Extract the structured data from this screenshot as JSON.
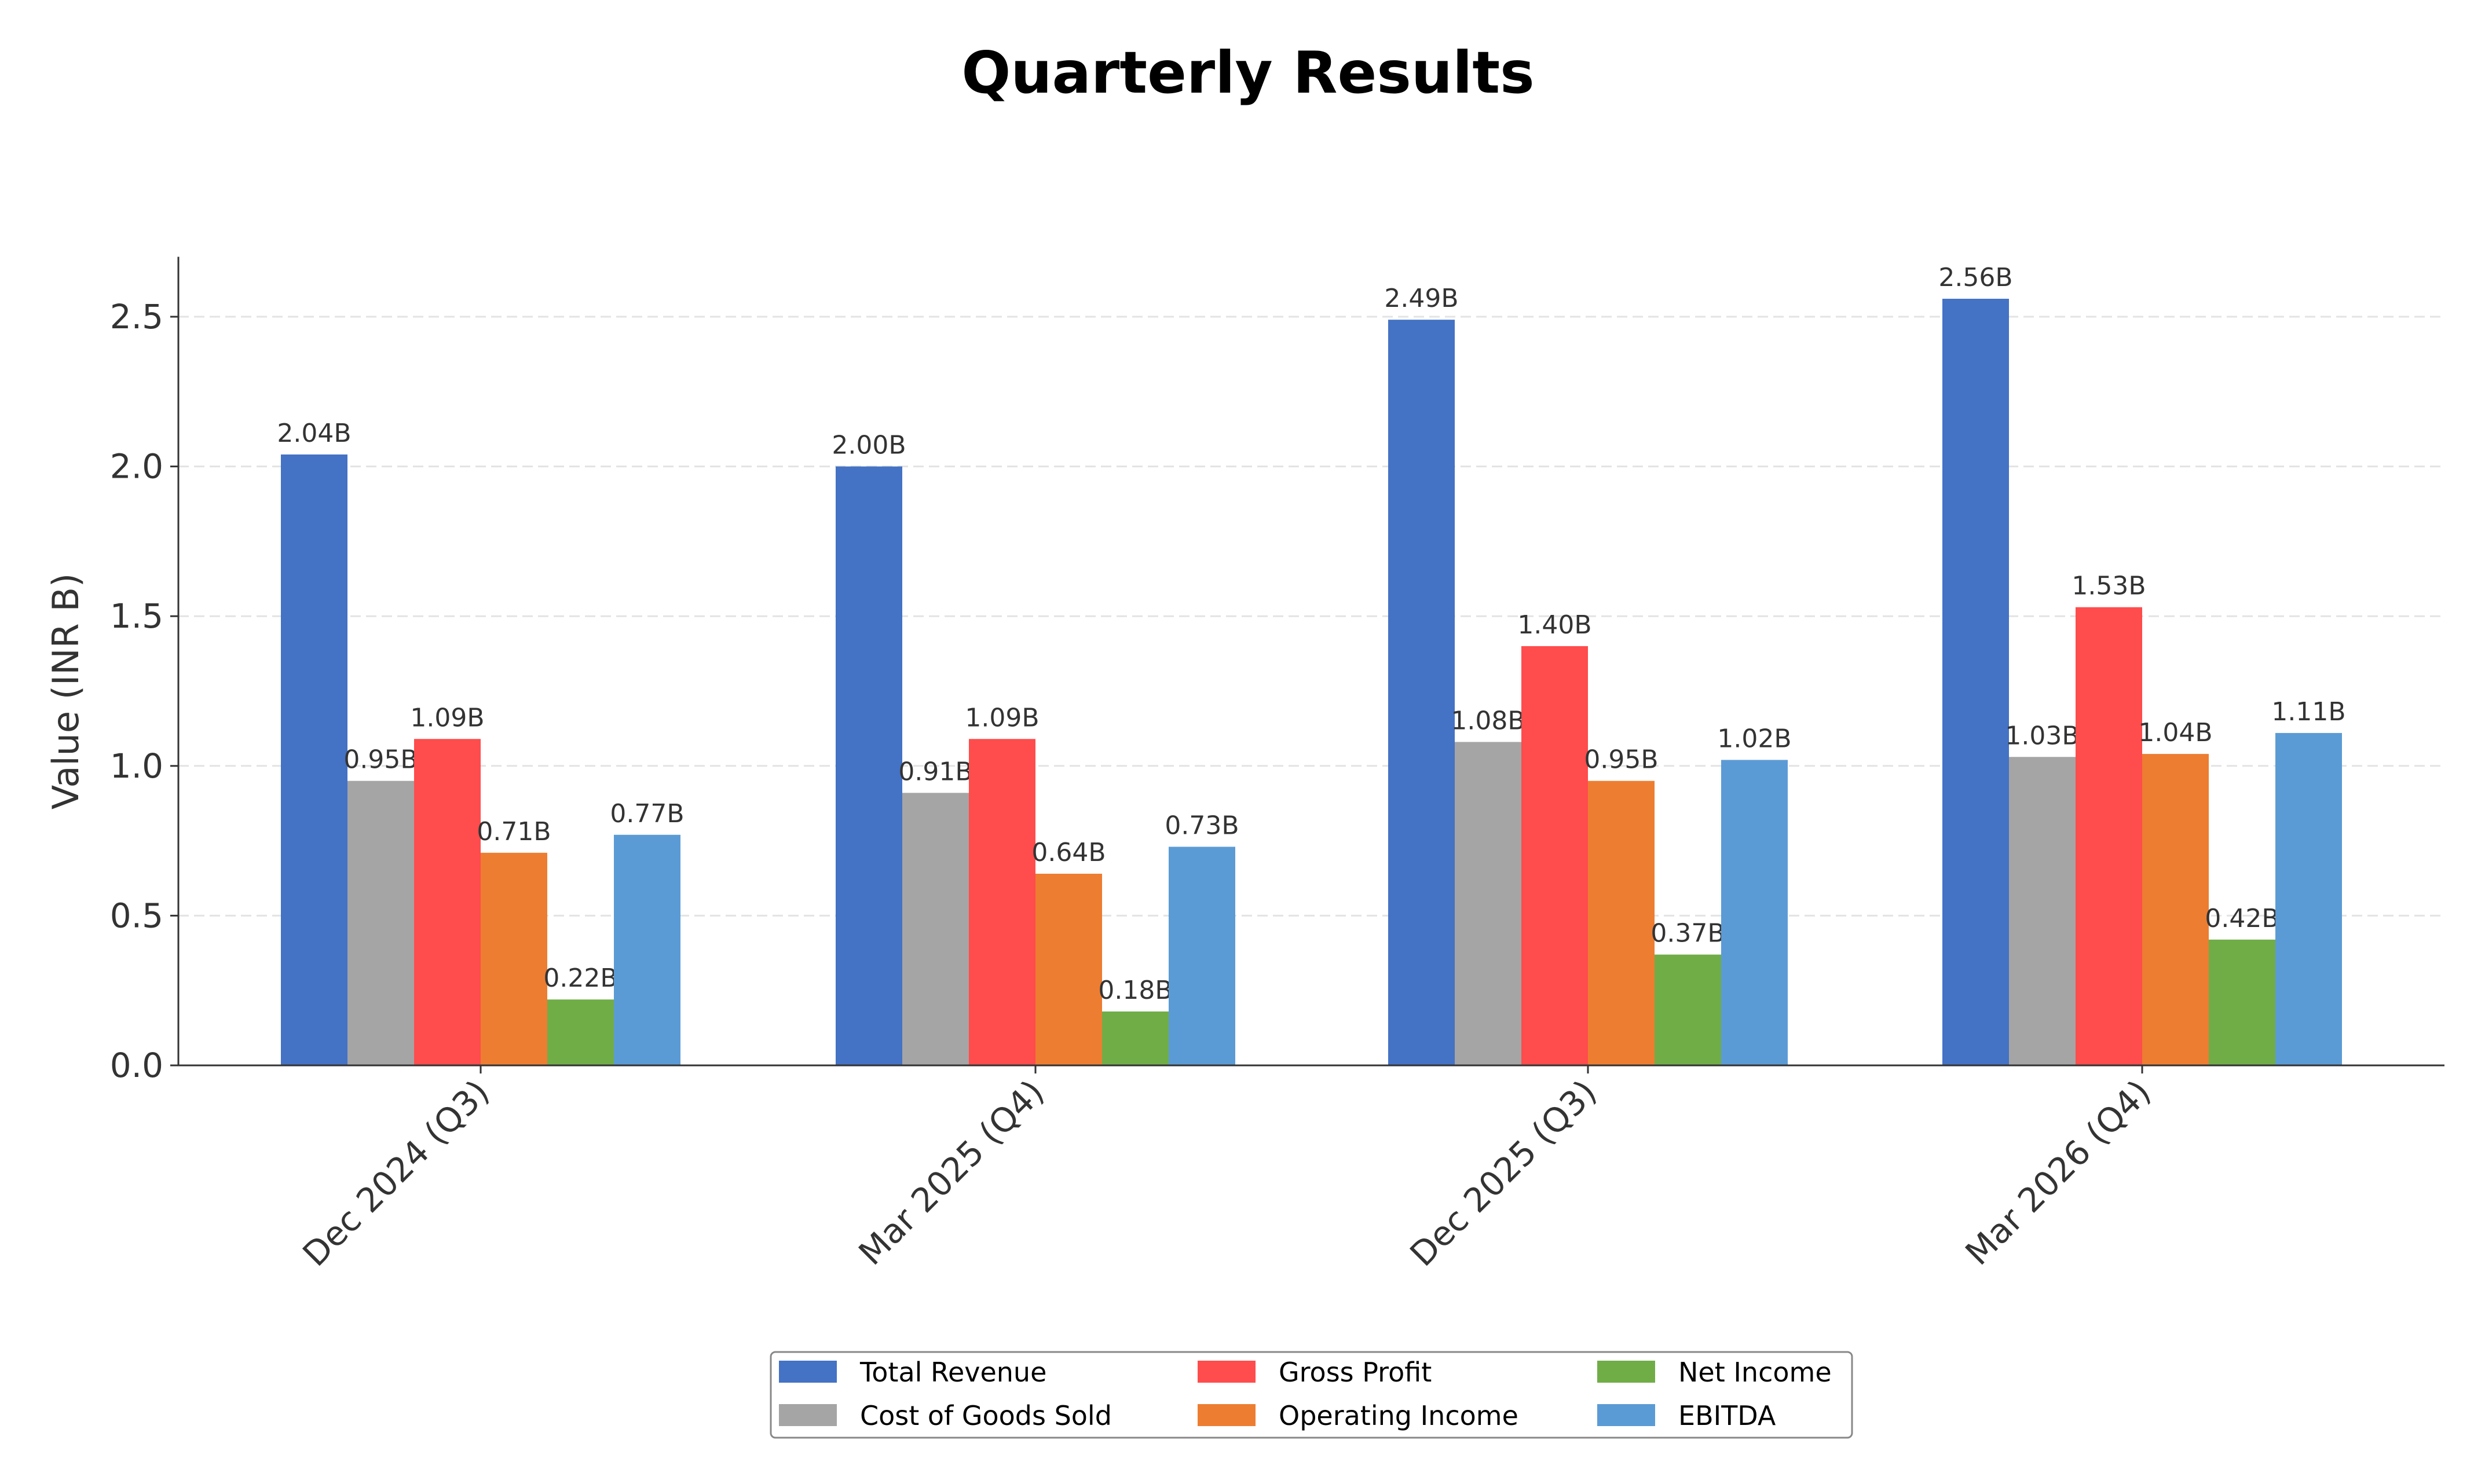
{
  "chart_data": {
    "type": "bar",
    "title": "Quarterly Results",
    "xlabel": "",
    "ylabel": "Value (INR B)",
    "ylim": [
      0,
      2.7
    ],
    "yticks": [
      "0.0",
      "0.5",
      "1.0",
      "1.5",
      "2.0",
      "2.5"
    ],
    "grid": "horizontal dashed",
    "legend_placement": "bottom-center",
    "categories": [
      "Dec 2024 (Q3)",
      "Mar 2025 (Q4)",
      "Dec 2025 (Q3)",
      "Mar 2026 (Q4)"
    ],
    "series": [
      {
        "name": "Total Revenue",
        "color": "#4472C4",
        "values": [
          2.04,
          2.0,
          2.49,
          2.56
        ],
        "labels": [
          "2.04B",
          "2.00B",
          "2.49B",
          "2.56B"
        ]
      },
      {
        "name": "Cost of Goods Sold",
        "color": "#A5A5A5",
        "values": [
          0.95,
          0.91,
          1.08,
          1.03
        ],
        "labels": [
          "0.95B",
          "0.91B",
          "1.08B",
          "1.03B"
        ]
      },
      {
        "name": "Gross Profit",
        "color": "#FF4C4C",
        "values": [
          1.09,
          1.09,
          1.4,
          1.53
        ],
        "labels": [
          "1.09B",
          "1.09B",
          "1.40B",
          "1.53B"
        ]
      },
      {
        "name": "Operating Income",
        "color": "#ED7D31",
        "values": [
          0.71,
          0.64,
          0.95,
          1.04
        ],
        "labels": [
          "0.71B",
          "0.64B",
          "0.95B",
          "1.04B"
        ]
      },
      {
        "name": "Net Income",
        "color": "#70AD47",
        "values": [
          0.22,
          0.18,
          0.37,
          0.42
        ],
        "labels": [
          "0.22B",
          "0.18B",
          "0.37B",
          "0.42B"
        ]
      },
      {
        "name": "EBITDA",
        "color": "#5B9BD5",
        "values": [
          0.77,
          0.73,
          1.02,
          1.11
        ],
        "labels": [
          "0.77B",
          "0.73B",
          "1.02B",
          "1.11B"
        ]
      }
    ]
  }
}
